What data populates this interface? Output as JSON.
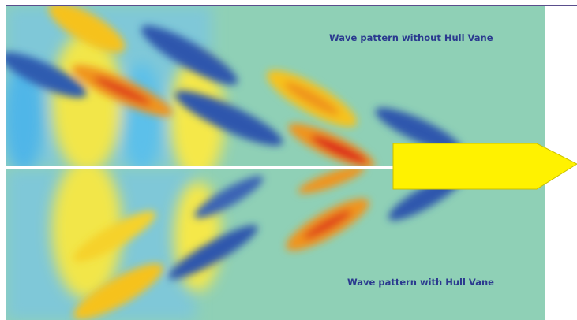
{
  "labels": {
    "top": "Wave pattern without Hull Vane",
    "bottom": "Wave pattern with Hull Vane"
  }
}
